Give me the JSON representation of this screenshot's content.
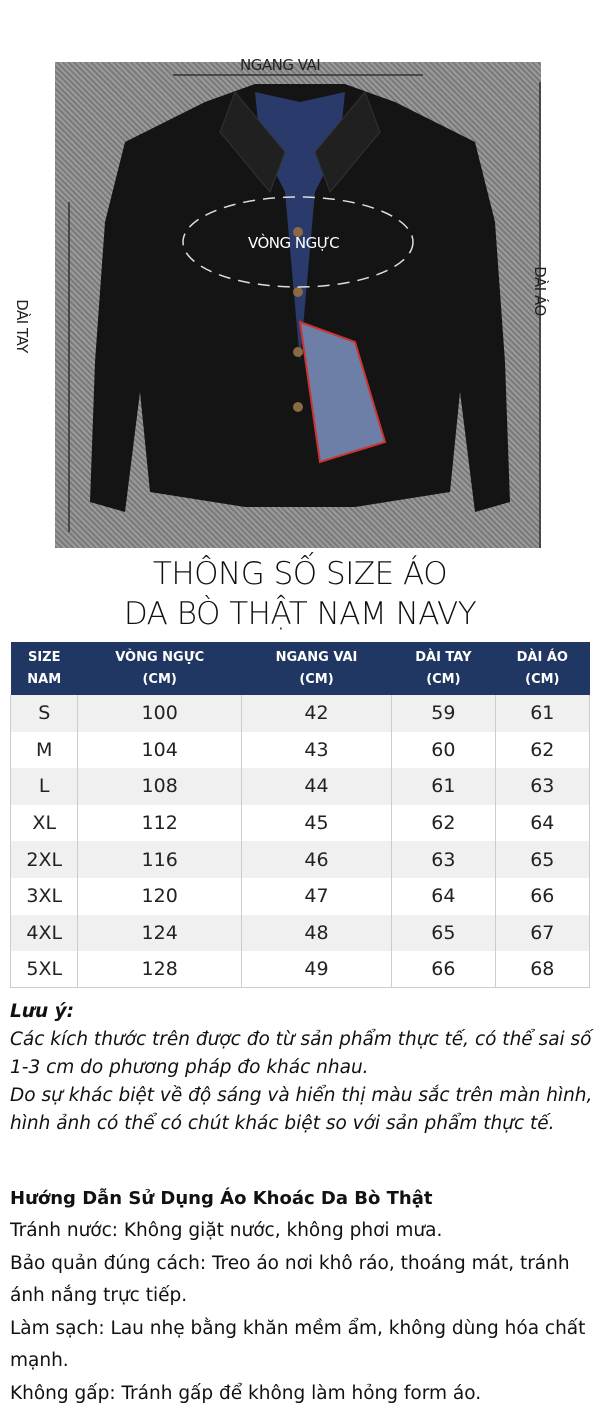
{
  "image_labels": {
    "shoulder": "NGANG VAI",
    "chest": "VÒNG NGỰC",
    "length": "DÀI ÁO",
    "sleeve": "DÀI TAY"
  },
  "title": {
    "line1": "THÔNG SỐ SIZE ÁO",
    "line2": "DA BÒ THẬT NAM NAVY"
  },
  "table": {
    "header_color": "#213763",
    "headers": [
      [
        "SIZE",
        "NAM"
      ],
      [
        "VÒNG NGỰC",
        "(CM)"
      ],
      [
        "NGANG VAI",
        "(CM)"
      ],
      [
        "DÀI TAY",
        "(CM)"
      ],
      [
        "DÀI ÁO",
        "(CM)"
      ]
    ],
    "rows": [
      [
        "S",
        "100",
        "42",
        "59",
        "61"
      ],
      [
        "M",
        "104",
        "43",
        "60",
        "62"
      ],
      [
        "L",
        "108",
        "44",
        "61",
        "63"
      ],
      [
        "XL",
        "112",
        "45",
        "62",
        "64"
      ],
      [
        "2XL",
        "116",
        "46",
        "63",
        "65"
      ],
      [
        "3XL",
        "120",
        "47",
        "64",
        "66"
      ],
      [
        "4XL",
        "124",
        "48",
        "65",
        "67"
      ],
      [
        "5XL",
        "128",
        "49",
        "66",
        "68"
      ]
    ]
  },
  "note": {
    "heading": "Lưu ý:",
    "lines": [
      "Các kích thước trên được đo từ sản phẩm thực tế, có thể sai số 1-3 cm do phương pháp đo khác nhau.",
      "Do sự khác biệt về độ sáng và hiển thị màu sắc trên màn hình, hình ảnh có thể có chút khác biệt so với sản phẩm thực tế."
    ]
  },
  "guide": {
    "heading": "Hướng Dẫn Sử Dụng Áo Khoác Da Bò Thật",
    "items": [
      "Tránh nước: Không giặt nước, không phơi mưa.",
      "Bảo quản đúng cách: Treo áo nơi khô ráo, thoáng mát, tránh ánh nắng trực tiếp.",
      "Làm sạch: Lau nhẹ bằng khăn mềm ẩm, không dùng hóa chất mạnh.",
      "Không gấp: Tránh gấp để không làm hỏng form áo."
    ]
  }
}
